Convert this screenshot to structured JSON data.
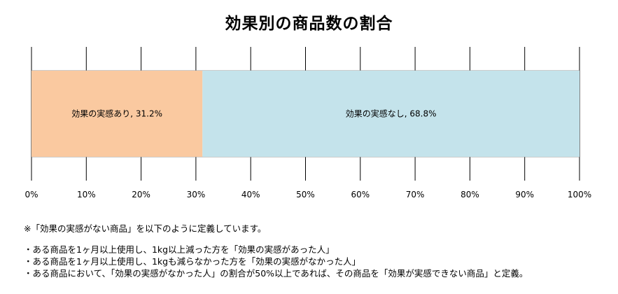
{
  "chart_data": {
    "type": "bar",
    "orientation": "horizontal",
    "stacked": true,
    "title": "効果別の商品数の割合",
    "xlim": [
      0,
      100
    ],
    "x_ticks": [
      "0%",
      "10%",
      "20%",
      "30%",
      "40%",
      "50%",
      "60%",
      "70%",
      "80%",
      "90%",
      "100%"
    ],
    "grid": true,
    "legend": "none",
    "series": [
      {
        "value": 31.2,
        "label": "効果の実感あり, 31.2%",
        "color": "#fac9a0"
      },
      {
        "value": 68.8,
        "label": "効果の実感なし, 68.8%",
        "color": "#c4e3eb"
      }
    ]
  },
  "notes": {
    "intro": "※「効果の実感がない商品」を以下のように定義しています。",
    "lines": [
      "・ある商品を1ヶ月以上使用し、1kg以上減った方を「効果の実感があった人」",
      "・ある商品を1ヶ月以上使用し、1kgも減らなかった方を「効果の実感がなかった人」",
      "・ある商品において、「効果の実感がなかった人」の割合が50%以上であれば、その商品を「効果が実感できない商品」と定義。"
    ]
  }
}
